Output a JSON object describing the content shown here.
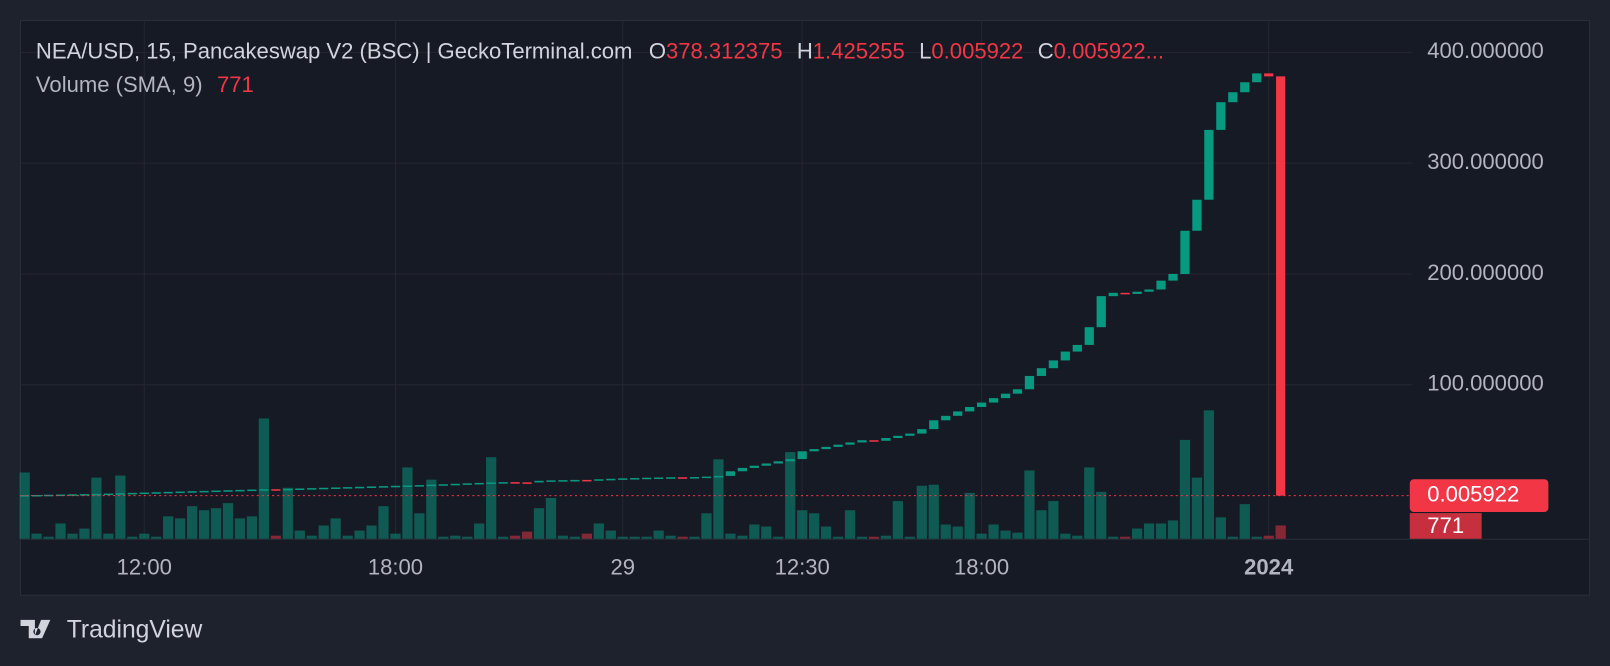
{
  "chart_data": {
    "type": "candlestick",
    "title": "NEA/USD, 15, Pancakeswap V2 (BSC) | GeckoTerminal.com",
    "ohlc_legend": [
      {
        "key": "O",
        "value": "378.312375"
      },
      {
        "key": "H",
        "value": "1.425255"
      },
      {
        "key": "L",
        "value": "0.005922"
      },
      {
        "key": "C",
        "value": "0.005922..."
      }
    ],
    "volume_legend": {
      "name": "Volume (SMA, 9)",
      "value": "771"
    },
    "brand": "TradingView",
    "up_color": "#089981",
    "down_color": "#f23645",
    "grid": true,
    "ylim": [
      -38.9,
      428.7
    ],
    "yticks": [
      {
        "value": 100,
        "label": "100.000000"
      },
      {
        "value": 200,
        "label": "200.000000"
      },
      {
        "value": 300,
        "label": "300.000000"
      },
      {
        "value": 400,
        "label": "400.000000"
      }
    ],
    "y2lim": [
      0,
      30000
    ],
    "categories": [
      null,
      null,
      null,
      null,
      null,
      null,
      null,
      null,
      null,
      null,
      "12:00",
      null,
      null,
      null,
      null,
      null,
      null,
      null,
      null,
      null,
      null,
      null,
      null,
      null,
      null,
      null,
      null,
      null,
      null,
      null,
      null,
      "18:00",
      null,
      null,
      null,
      null,
      null,
      null,
      null,
      null,
      null,
      null,
      null,
      null,
      null,
      null,
      null,
      null,
      null,
      null,
      "29",
      null,
      null,
      null,
      null,
      null,
      null,
      null,
      null,
      null,
      null,
      null,
      null,
      null,
      null,
      "12:30",
      null,
      null,
      null,
      null,
      null,
      null,
      null,
      null,
      null,
      null,
      null,
      null,
      null,
      null,
      "18:00",
      null,
      null,
      null,
      null,
      null,
      null,
      null,
      null,
      null,
      null,
      null,
      null,
      null,
      null,
      null,
      null,
      null,
      null,
      null,
      null,
      null,
      null,
      null,
      "2024",
      null
    ],
    "open": [
      0.4,
      0.5,
      0.6,
      0.8,
      1.0,
      1.2,
      1.4,
      1.6,
      1.9,
      2.2,
      2.5,
      2.8,
      3.1,
      3.4,
      3.7,
      4.0,
      4.3,
      4.6,
      4.9,
      5.2,
      5.5,
      5.8,
      5.6,
      6.1,
      6.5,
      6.8,
      7.1,
      7.4,
      7.7,
      8.0,
      8.3,
      8.6,
      8.9,
      9.2,
      9.5,
      9.9,
      10.3,
      10.7,
      11.1,
      11.5,
      11.9,
      12.2,
      12.0,
      11.9,
      13.4,
      13.8,
      14.0,
      14.2,
      14.0,
      14.8,
      15.2,
      15.6,
      15.9,
      16.2,
      16.4,
      16.6,
      16.4,
      16.8,
      17.2,
      17.8,
      22.0,
      25,
      27,
      29,
      31,
      33,
      40,
      42,
      44,
      46,
      48,
      50,
      49.5,
      52,
      54,
      56,
      60,
      68,
      72,
      76,
      80,
      84,
      88,
      92,
      96,
      108,
      115,
      122,
      130,
      136,
      152,
      180,
      183,
      182,
      184,
      186,
      194,
      200,
      239,
      267,
      330,
      355,
      364,
      373,
      381,
      378.312375
    ],
    "close": [
      0.5,
      0.6,
      0.8,
      1.0,
      1.2,
      1.4,
      1.6,
      1.9,
      2.2,
      2.5,
      2.8,
      3.1,
      3.4,
      3.7,
      4.0,
      4.3,
      4.6,
      4.9,
      5.2,
      5.5,
      5.8,
      5.6,
      6.1,
      6.5,
      6.8,
      7.1,
      7.4,
      7.7,
      8.0,
      8.3,
      8.6,
      8.9,
      9.2,
      9.5,
      9.9,
      10.3,
      10.7,
      11.1,
      11.5,
      11.9,
      12.2,
      12.0,
      11.9,
      13.4,
      13.8,
      14.0,
      14.2,
      14.0,
      14.8,
      15.2,
      15.6,
      15.9,
      16.2,
      16.4,
      16.6,
      16.4,
      16.8,
      17.2,
      17.8,
      22.0,
      25,
      27,
      29,
      31,
      33,
      40,
      42,
      44,
      46,
      48,
      50,
      49.5,
      52,
      54,
      56,
      60,
      68,
      72,
      76,
      80,
      84,
      88,
      92,
      96,
      108,
      115,
      122,
      130,
      136,
      152,
      180,
      183,
      182,
      184,
      186,
      194,
      200,
      239,
      267,
      330,
      355,
      364,
      373,
      381,
      378.312375,
      0.005922
    ],
    "volume": [
      3835,
      295,
      118,
      885,
      295,
      590,
      3540,
      295,
      3658,
      118,
      295,
      118,
      1298,
      1180,
      1888,
      1652,
      1770,
      2065,
      1180,
      1298,
      6962,
      177,
      2950,
      472,
      177,
      767,
      1180,
      177,
      472,
      767,
      1888,
      295,
      4130,
      1475,
      3422,
      118,
      177,
      118,
      885,
      4720,
      118,
      177,
      413,
      1770,
      2360,
      177,
      118,
      295,
      885,
      472,
      118,
      118,
      118,
      472,
      177,
      118,
      118,
      1475,
      4602,
      295,
      177,
      826,
      708,
      118,
      5015,
      1652,
      1475,
      708,
      118,
      1652,
      118,
      118,
      177,
      2183,
      118,
      3068,
      3127,
      826,
      708,
      2655,
      295,
      826,
      472,
      354,
      3953,
      1652,
      2183,
      295,
      177,
      4130,
      2714,
      118,
      118,
      590,
      885,
      885,
      1062,
      5723,
      3540,
      7434,
      1239,
      118,
      2006,
      118,
      177,
      771
    ]
  }
}
